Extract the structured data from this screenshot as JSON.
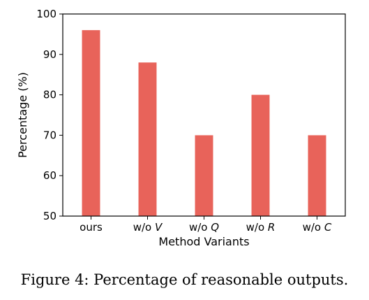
{
  "chart_data": {
    "type": "bar",
    "categories": [
      {
        "label": "w/o ",
        "italic": ""
      },
      {
        "label": "w/o ",
        "italic": "V"
      },
      {
        "label": "w/o ",
        "italic": "Q"
      },
      {
        "label": "w/o ",
        "italic": "R"
      },
      {
        "label": "w/o ",
        "italic": "C"
      }
    ],
    "category_labels": [
      "ours",
      "w/o V",
      "w/o Q",
      "w/o R",
      "w/o C"
    ],
    "values": [
      96,
      88,
      70,
      80,
      70
    ],
    "xlabel": "Method Variants",
    "ylabel": "Percentage (%)",
    "ylim": [
      50,
      100
    ],
    "yticks": [
      50,
      60,
      70,
      80,
      90,
      100
    ],
    "bar_color": "#e8635a",
    "grid": false,
    "legend": "none"
  },
  "figure": {
    "caption": "Figure 4: Percentage of reasonable outputs."
  }
}
